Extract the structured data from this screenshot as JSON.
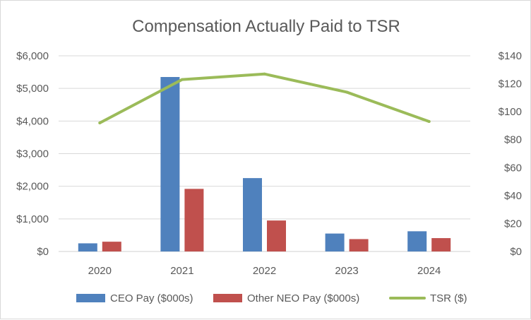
{
  "chart_data": {
    "type": "bar",
    "title": "Compensation Actually Paid to TSR",
    "categories": [
      "2020",
      "2021",
      "2022",
      "2023",
      "2024"
    ],
    "series": [
      {
        "name": "CEO Pay ($000s)",
        "type": "bar",
        "axis": "left",
        "color": "#4f81bd",
        "values": [
          250,
          5350,
          2250,
          550,
          620
        ]
      },
      {
        "name": "Other NEO Pay ($000s)",
        "type": "bar",
        "axis": "left",
        "color": "#c0504d",
        "values": [
          300,
          1920,
          950,
          380,
          410
        ]
      },
      {
        "name": "TSR ($)",
        "type": "line",
        "axis": "right",
        "color": "#9bbb59",
        "values": [
          92,
          123,
          127,
          114,
          93
        ]
      }
    ],
    "y_left": {
      "min": 0,
      "max": 6000,
      "step": 1000,
      "tick_labels": [
        "$0",
        "$1,000",
        "$2,000",
        "$3,000",
        "$4,000",
        "$5,000",
        "$6,000"
      ]
    },
    "y_right": {
      "min": 0,
      "max": 140,
      "step": 20,
      "tick_labels": [
        "$0",
        "$20",
        "$40",
        "$60",
        "$80",
        "$100",
        "$120",
        "$140"
      ]
    },
    "grid": true,
    "legend": "bottom"
  }
}
